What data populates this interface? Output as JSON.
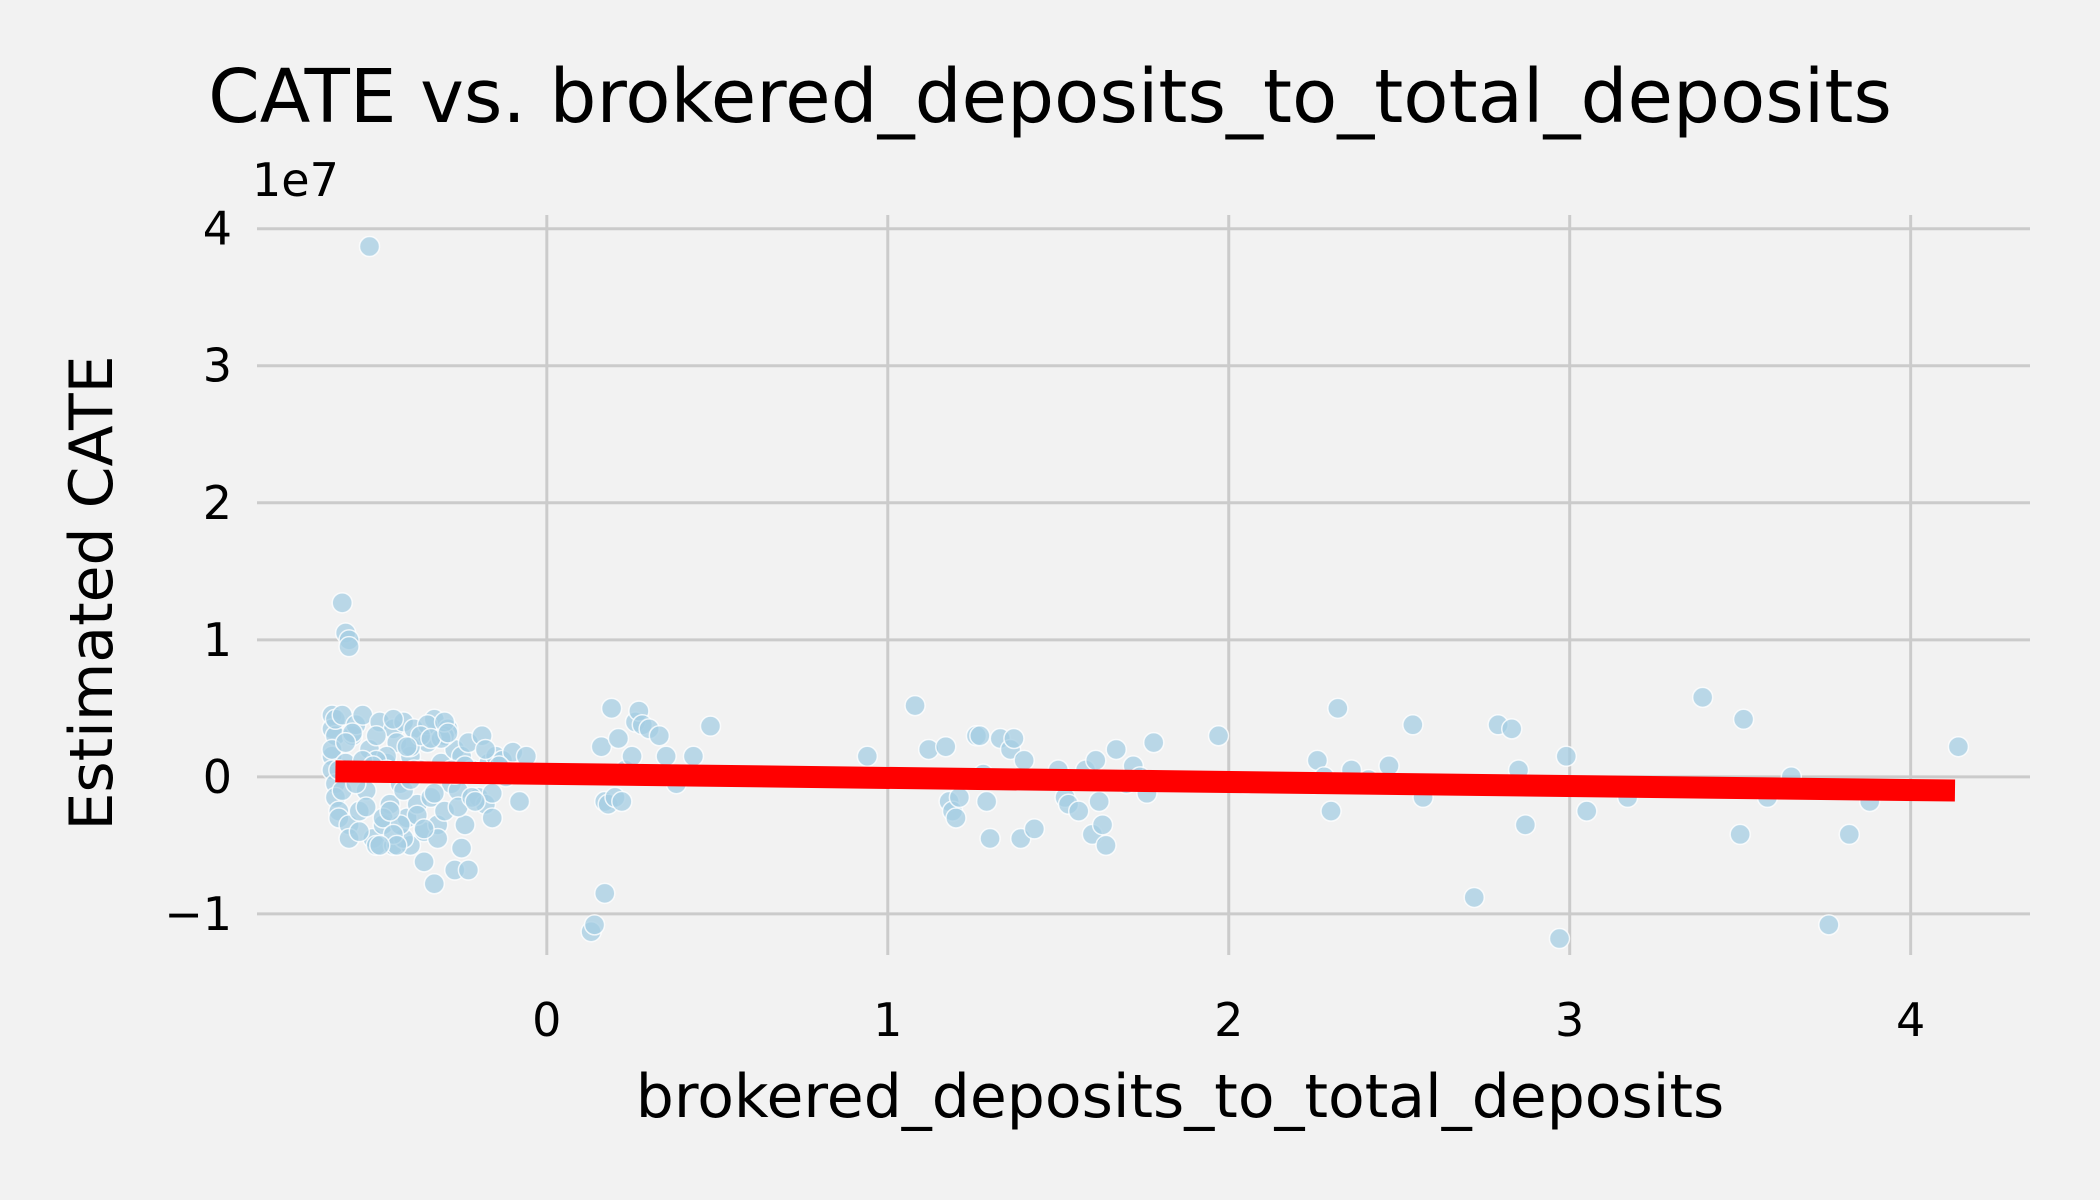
{
  "chart_data": {
    "type": "scatter",
    "title": "CATE vs. brokered_deposits_to_total_deposits",
    "xlabel": "brokered_deposits_to_total_deposits",
    "ylabel": "Estimated CATE",
    "y_offset_label": "1e7",
    "xlim": [
      -0.85,
      4.35
    ],
    "ylim": [
      -1.3,
      4.1
    ],
    "x_ticks": [
      0,
      1,
      2,
      3,
      4
    ],
    "x_tick_labels": [
      "0",
      "1",
      "2",
      "3",
      "4"
    ],
    "y_ticks": [
      -1,
      0,
      1,
      2,
      3,
      4
    ],
    "y_tick_labels": [
      "−1",
      "0",
      "1",
      "2",
      "3",
      "4"
    ],
    "grid": true,
    "legend": "none",
    "colors": {
      "points": "#a6cee3",
      "trend_line": "#ff0000",
      "grid": "#cbcbcb",
      "background": "#f2f2f2"
    },
    "series": [
      {
        "kind": "scatter",
        "x": [
          -0.52,
          -0.6,
          -0.59,
          -0.58,
          -0.58,
          -0.63,
          -0.63,
          -0.62,
          -0.63,
          -0.63,
          -0.62,
          -0.62,
          -0.61,
          -0.62,
          -0.63,
          -0.61,
          -0.6,
          -0.6,
          -0.59,
          -0.58,
          -0.58,
          -0.57,
          -0.56,
          -0.55,
          -0.55,
          -0.54,
          -0.53,
          -0.52,
          -0.51,
          -0.5,
          -0.49,
          -0.48,
          -0.47,
          -0.46,
          -0.45,
          -0.45,
          -0.44,
          -0.43,
          -0.42,
          -0.41,
          -0.4,
          -0.4,
          -0.39,
          -0.38,
          -0.37,
          -0.36,
          -0.35,
          -0.34,
          -0.33,
          -0.32,
          -0.31,
          -0.3,
          -0.29,
          -0.28,
          -0.27,
          -0.26,
          -0.25,
          -0.24,
          -0.23,
          -0.22,
          -0.2,
          -0.19,
          -0.18,
          -0.17,
          -0.16,
          -0.15,
          -0.13,
          -0.12,
          -0.1,
          -0.08,
          -0.06,
          -0.55,
          -0.5,
          -0.48,
          -0.45,
          -0.42,
          -0.4,
          -0.38,
          -0.35,
          -0.33,
          -0.3,
          -0.28,
          -0.26,
          -0.24,
          -0.22,
          -0.18,
          -0.16,
          -0.14,
          -0.57,
          -0.53,
          -0.47,
          -0.43,
          -0.37,
          -0.32,
          -0.27,
          -0.21,
          -0.56,
          -0.5,
          -0.45,
          -0.41,
          -0.36,
          -0.31,
          -0.36,
          -0.44,
          -0.49,
          -0.3,
          -0.25,
          -0.27,
          -0.33,
          -0.23,
          -0.54,
          -0.46,
          -0.39,
          -0.34,
          -0.29,
          -0.61,
          -0.59,
          -0.51,
          -0.42,
          -0.47,
          -0.4,
          0.13,
          0.14,
          0.17,
          0.16,
          0.17,
          0.18,
          0.19,
          0.2,
          0.21,
          0.22,
          0.23,
          0.25,
          0.26,
          0.27,
          0.28,
          0.3,
          0.33,
          0.35,
          0.38,
          0.43,
          0.48,
          0.94,
          1.08,
          1.12,
          1.17,
          1.18,
          1.19,
          1.2,
          1.21,
          1.26,
          1.27,
          1.28,
          1.29,
          1.3,
          1.33,
          1.36,
          1.37,
          1.39,
          1.4,
          1.43,
          1.5,
          1.52,
          1.53,
          1.56,
          1.58,
          1.6,
          1.61,
          1.62,
          1.63,
          1.64,
          1.67,
          1.7,
          1.72,
          1.74,
          1.76,
          1.78,
          1.97,
          2.05,
          2.25,
          2.26,
          2.28,
          2.3,
          2.32,
          2.36,
          2.41,
          2.47,
          2.54,
          2.57,
          2.72,
          2.79,
          2.83,
          2.85,
          2.87,
          2.97,
          2.99,
          3.05,
          3.17,
          3.39,
          3.5,
          3.51,
          3.58,
          3.65,
          3.76,
          3.82,
          3.88,
          4.14
        ],
        "y": [
          3.87,
          1.27,
          1.05,
          1.0,
          0.95,
          0.45,
          0.35,
          0.3,
          0.15,
          0.05,
          -0.05,
          -0.15,
          -0.25,
          0.42,
          0.2,
          -0.3,
          0.45,
          -0.1,
          0.1,
          -0.35,
          -0.45,
          0.3,
          0.38,
          0.05,
          -0.25,
          0.45,
          -0.1,
          0.2,
          -0.45,
          -0.5,
          0.4,
          -0.35,
          0.1,
          -0.2,
          0.35,
          -0.5,
          0.25,
          -0.05,
          0.4,
          -0.3,
          0.15,
          -0.5,
          0.35,
          -0.2,
          0.05,
          -0.4,
          0.25,
          -0.15,
          0.42,
          -0.35,
          0.1,
          -0.25,
          0.35,
          -0.05,
          0.2,
          -0.1,
          0.15,
          -0.35,
          0.25,
          0.05,
          -0.15,
          0.3,
          -0.2,
          0.1,
          -0.3,
          0.15,
          0.12,
          0.0,
          0.18,
          -0.18,
          0.15,
          -0.4,
          0.3,
          -0.3,
          0.42,
          -0.45,
          0.22,
          -0.28,
          0.38,
          -0.12,
          0.3,
          0.05,
          -0.22,
          0.08,
          -0.15,
          0.2,
          -0.12,
          0.08,
          0.32,
          -0.22,
          0.15,
          -0.35,
          0.3,
          -0.45,
          0.02,
          -0.18,
          -0.05,
          0.12,
          -0.42,
          0.22,
          -0.38,
          0.28,
          -0.62,
          -0.5,
          -0.5,
          0.4,
          -0.52,
          -0.68,
          -0.78,
          -0.68,
          0.12,
          -0.25,
          0.05,
          0.28,
          0.32,
          0.05,
          0.25,
          0.08,
          -0.1,
          0.05,
          -0.02,
          -1.13,
          -1.08,
          -0.85,
          0.22,
          -0.18,
          -0.2,
          0.5,
          -0.15,
          0.28,
          -0.18,
          0.05,
          0.15,
          0.4,
          0.48,
          0.38,
          0.35,
          0.3,
          0.15,
          -0.05,
          0.15,
          0.37,
          0.15,
          0.52,
          0.2,
          0.22,
          -0.18,
          -0.25,
          -0.3,
          -0.15,
          0.3,
          0.3,
          0.02,
          -0.18,
          -0.45,
          0.28,
          0.2,
          0.28,
          -0.45,
          0.12,
          -0.38,
          0.05,
          -0.15,
          -0.2,
          -0.25,
          0.05,
          -0.42,
          0.12,
          -0.18,
          -0.35,
          -0.5,
          0.2,
          -0.05,
          0.08,
          0.0,
          -0.12,
          0.25,
          0.3,
          -0.05,
          -0.05,
          0.12,
          0.0,
          -0.25,
          0.5,
          0.05,
          -0.02,
          0.08,
          0.38,
          -0.15,
          -0.88,
          0.38,
          0.35,
          0.05,
          -0.35,
          -1.18,
          0.15,
          -0.25,
          -0.15,
          0.58,
          -0.42,
          0.42,
          -0.15,
          0.0,
          -1.08,
          -0.42,
          -0.18,
          0.22
        ]
      },
      {
        "kind": "line",
        "x": [
          -0.62,
          4.13
        ],
        "y": [
          0.04,
          -0.1
        ]
      }
    ]
  }
}
